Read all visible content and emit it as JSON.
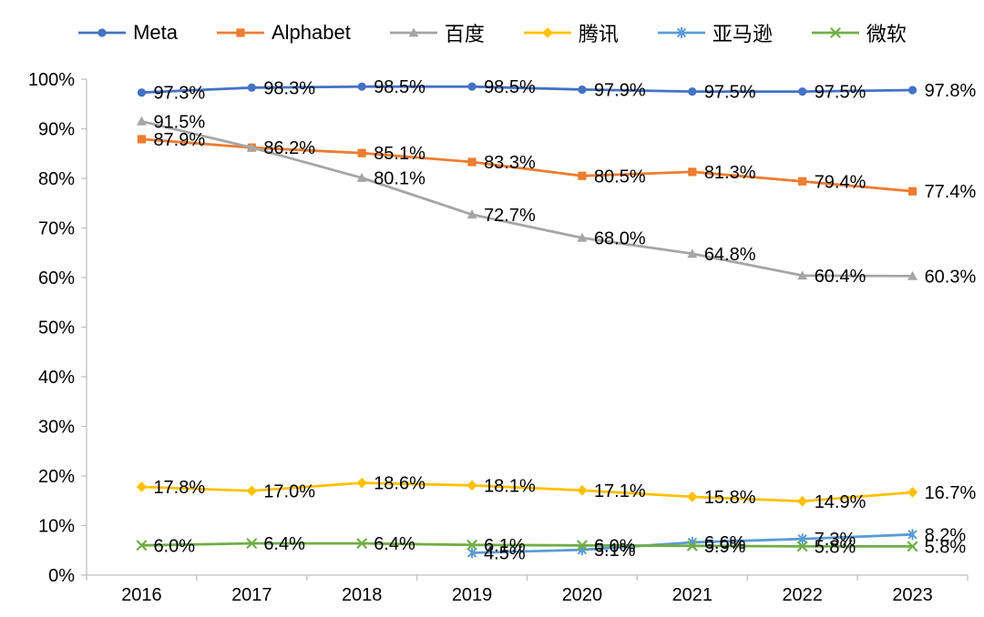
{
  "chart_data": {
    "type": "line",
    "title": "",
    "legend_position": "top",
    "grid": false,
    "categories": [
      "2016",
      "2017",
      "2018",
      "2019",
      "2020",
      "2021",
      "2022",
      "2023"
    ],
    "y_axis": {
      "min": 0,
      "max": 100,
      "step": 10,
      "tick_labels": [
        "0%",
        "10%",
        "20%",
        "30%",
        "40%",
        "50%",
        "60%",
        "70%",
        "80%",
        "90%",
        "100%"
      ]
    },
    "axis_color": "#bfbfbf",
    "label_color": "#000000",
    "series": [
      {
        "name": "Meta",
        "slug": "meta",
        "color": "#4472C4",
        "marker": "circle",
        "values": [
          97.3,
          98.3,
          98.5,
          98.5,
          97.9,
          97.5,
          97.5,
          97.8
        ],
        "labels": [
          "97.3%",
          "98.3%",
          "98.5%",
          "98.5%",
          "97.9%",
          "97.5%",
          "97.5%",
          "97.8%"
        ]
      },
      {
        "name": "Alphabet",
        "slug": "alphabet",
        "color": "#ED7D31",
        "marker": "square",
        "values": [
          87.9,
          86.2,
          85.1,
          83.3,
          80.5,
          81.3,
          79.4,
          77.4
        ],
        "labels": [
          "87.9%",
          "86.2%",
          "85.1%",
          "83.3%",
          "80.5%",
          "81.3%",
          "79.4%",
          "77.4%"
        ]
      },
      {
        "name": "百度",
        "slug": "baidu",
        "color": "#A5A5A5",
        "marker": "triangle",
        "values": [
          91.5,
          86.2,
          80.1,
          72.7,
          68.0,
          64.8,
          60.4,
          60.3
        ],
        "labels": [
          "91.5%",
          "",
          "80.1%",
          "72.7%",
          "68.0%",
          "64.8%",
          "60.4%",
          "60.3%"
        ]
      },
      {
        "name": "腾讯",
        "slug": "tencent",
        "color": "#FFC000",
        "marker": "diamond",
        "values": [
          17.8,
          17.0,
          18.6,
          18.1,
          17.1,
          15.8,
          14.9,
          16.7
        ],
        "labels": [
          "17.8%",
          "17.0%",
          "18.6%",
          "18.1%",
          "17.1%",
          "15.8%",
          "14.9%",
          "16.7%"
        ]
      },
      {
        "name": "亚马逊",
        "slug": "amazon",
        "color": "#5B9BD5",
        "marker": "asterisk",
        "values": [
          null,
          null,
          null,
          4.5,
          5.1,
          6.6,
          7.3,
          8.2
        ],
        "labels": [
          "",
          "",
          "",
          "4.5%",
          "5.1%",
          "6.6%",
          "7.3%",
          "8.2%"
        ]
      },
      {
        "name": "微软",
        "slug": "microsoft",
        "color": "#70AD47",
        "marker": "x",
        "values": [
          6.0,
          6.4,
          6.4,
          6.1,
          6.0,
          5.9,
          5.8,
          5.8
        ],
        "labels": [
          "6.0%",
          "6.4%",
          "6.4%",
          "6.1%",
          "6.0%",
          "5.9%",
          "5.8%",
          "5.8%"
        ]
      }
    ]
  }
}
